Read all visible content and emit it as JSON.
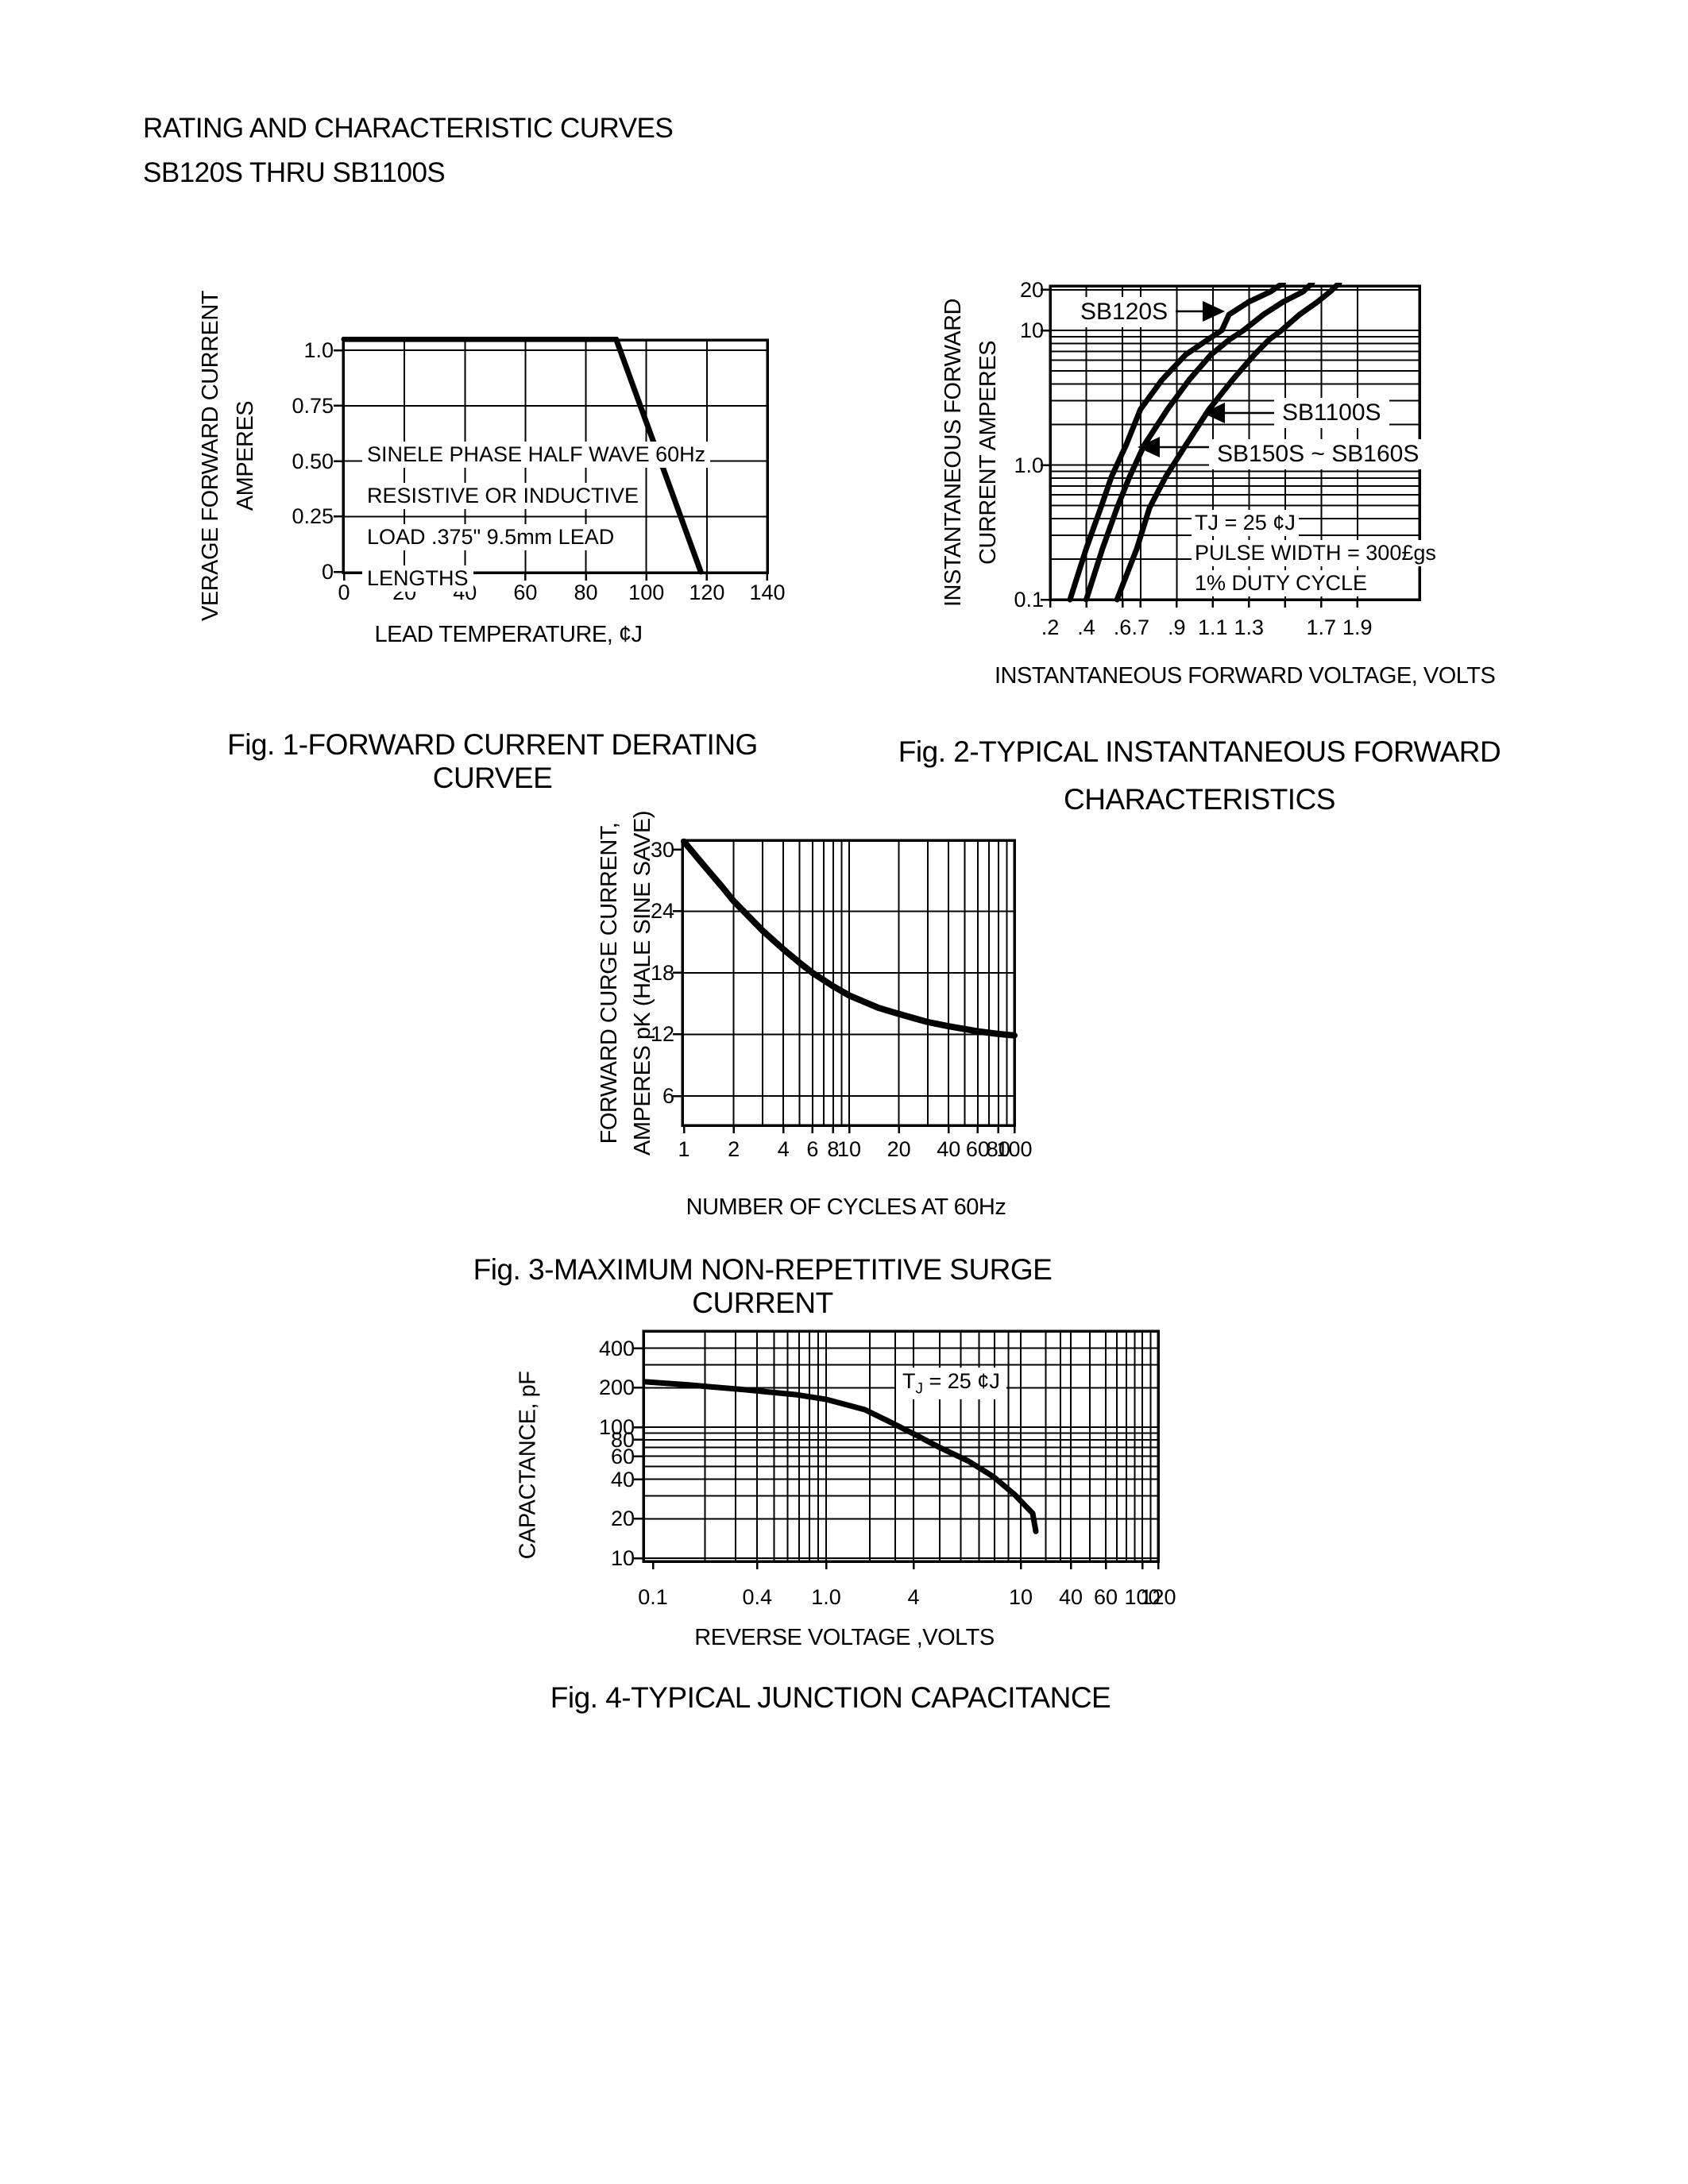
{
  "page": {
    "title_line1": "RATING AND CHARACTERISTIC CURVES",
    "title_line2": "SB120S THRU SB1100S"
  },
  "chart_data": [
    {
      "id": "fig1",
      "type": "line",
      "title": "Fig. 1-FORWARD CURRENT DERATING CURVEE",
      "xlabel": "LEAD TEMPERATURE, ¢J",
      "ylabel": [
        "VERAGE FORWARD CURRENT",
        "AMPERES"
      ],
      "xlim": [
        0,
        140
      ],
      "ylim": [
        0,
        1.05
      ],
      "x_log": false,
      "y_log": false,
      "grid": true,
      "x_ticks": [
        {
          "v": 0,
          "label": "0"
        },
        {
          "v": 20,
          "label": "20"
        },
        {
          "v": 40,
          "label": "40"
        },
        {
          "v": 60,
          "label": "60"
        },
        {
          "v": 80,
          "label": "80"
        },
        {
          "v": 100,
          "label": "100"
        },
        {
          "v": 120,
          "label": "120"
        },
        {
          "v": 140,
          "label": "140"
        }
      ],
      "y_ticks": [
        {
          "v": 1.0,
          "label": "1.0"
        },
        {
          "v": 0.75,
          "label": "0.75"
        },
        {
          "v": 0.5,
          "label": "0.50"
        },
        {
          "v": 0.25,
          "label": "0.25"
        },
        {
          "v": 0,
          "label": "0"
        }
      ],
      "annotation": [
        "SINELE PHASE HALF WAVE 60Hz",
        "RESISTIVE OR INDUCTIVE",
        "LOAD .375\" 9.5mm LEAD",
        "LENGTHS"
      ],
      "series": [
        {
          "name": "derating-curve",
          "points": [
            [
              0,
              1.05
            ],
            [
              90,
              1.05
            ],
            [
              118,
              0
            ]
          ]
        }
      ]
    },
    {
      "id": "fig2",
      "type": "line",
      "title": [
        "Fig. 2-TYPICAL INSTANTANEOUS FORWARD",
        "CHARACTERISTICS"
      ],
      "xlabel": "INSTANTANEOUS FORWARD VOLTAGE, VOLTS",
      "ylabel": [
        "INSTANTANEOUS FORWARD",
        "CURRENT AMPERES"
      ],
      "xlim": [
        0.2,
        2.0
      ],
      "ylim": [
        0.1,
        22
      ],
      "x_log": false,
      "y_log": true,
      "grid": true,
      "x_ticks": [
        {
          "v": 0.2,
          "label": ".2"
        },
        {
          "v": 0.4,
          "label": ".4"
        },
        {
          "v": 0.6,
          "label": ".6"
        },
        {
          "v": 0.7,
          "label": ".7"
        },
        {
          "v": 0.9,
          "label": ".9"
        },
        {
          "v": 1.1,
          "label": "1.1"
        },
        {
          "v": 1.3,
          "label": "1.3"
        },
        {
          "v": 1.5,
          "label": ""
        },
        {
          "v": 1.7,
          "label": "1.7"
        },
        {
          "v": 1.9,
          "label": "1.9"
        }
      ],
      "y_ticks": [
        {
          "v": 20,
          "label": "20"
        },
        {
          "v": 10,
          "label": "10"
        },
        {
          "v": 1,
          "label": "1.0"
        },
        {
          "v": 0.1,
          "label": "0.1"
        }
      ],
      "annotations": [
        "TJ = 25 ¢J",
        "PULSE WIDTH = 300£gs",
        "1% DUTY CYCLE"
      ],
      "series": [
        {
          "name": "SB120S",
          "points": [
            [
              0.31,
              0.1
            ],
            [
              0.4,
              0.24
            ],
            [
              0.48,
              0.48
            ],
            [
              0.54,
              0.82
            ],
            [
              0.62,
              1.4
            ],
            [
              0.7,
              2.6
            ],
            [
              0.82,
              4.3
            ],
            [
              0.95,
              6.6
            ],
            [
              1.07,
              8.5
            ],
            [
              1.15,
              10
            ],
            [
              1.19,
              13.1
            ],
            [
              1.3,
              16.3
            ],
            [
              1.42,
              19.4
            ],
            [
              1.49,
              22.5
            ]
          ]
        },
        {
          "name": "SB150S ~ SB160S",
          "points": [
            [
              0.4,
              0.1
            ],
            [
              0.49,
              0.24
            ],
            [
              0.57,
              0.48
            ],
            [
              0.64,
              0.82
            ],
            [
              0.72,
              1.4
            ],
            [
              0.85,
              2.6
            ],
            [
              0.97,
              4.3
            ],
            [
              1.09,
              6.6
            ],
            [
              1.19,
              8.5
            ],
            [
              1.27,
              10
            ],
            [
              1.38,
              13.1
            ],
            [
              1.49,
              16.3
            ],
            [
              1.6,
              19.4
            ],
            [
              1.65,
              22.5
            ]
          ]
        },
        {
          "name": "SB1100S",
          "points": [
            [
              0.57,
              0.1
            ],
            [
              0.68,
              0.24
            ],
            [
              0.75,
              0.48
            ],
            [
              0.84,
              0.82
            ],
            [
              0.95,
              1.4
            ],
            [
              1.08,
              2.6
            ],
            [
              1.21,
              4.3
            ],
            [
              1.33,
              6.6
            ],
            [
              1.41,
              8.5
            ],
            [
              1.48,
              10
            ],
            [
              1.58,
              13.1
            ],
            [
              1.68,
              16.3
            ],
            [
              1.75,
              19.4
            ],
            [
              1.8,
              22.5
            ]
          ]
        }
      ]
    },
    {
      "id": "fig3",
      "type": "line",
      "title": "Fig. 3-MAXIMUM NON-REPETITIVE SURGE CURRENT",
      "xlabel": "NUMBER OF CYCLES AT 60Hz",
      "ylabel": [
        "FORWARD CURGE CURRENT,",
        "AMPERES pK (HALE SINE SAVE)"
      ],
      "xlim": [
        1,
        100
      ],
      "ylim": [
        3,
        31
      ],
      "x_log": true,
      "y_log": false,
      "grid": true,
      "x_ticks": [
        {
          "v": 1,
          "label": "1"
        },
        {
          "v": 2,
          "label": "2"
        },
        {
          "v": 4,
          "label": "4"
        },
        {
          "v": 6,
          "label": "6"
        },
        {
          "v": 8,
          "label": "8"
        },
        {
          "v": 10,
          "label": "10"
        },
        {
          "v": 20,
          "label": "20"
        },
        {
          "v": 40,
          "label": "40"
        },
        {
          "v": 60,
          "label": "60"
        },
        {
          "v": 80,
          "label": "80"
        },
        {
          "v": 100,
          "label": "100"
        }
      ],
      "y_ticks": [
        {
          "v": 30,
          "label": "30"
        },
        {
          "v": 24,
          "label": "24"
        },
        {
          "v": 18,
          "label": "18"
        },
        {
          "v": 12,
          "label": "12"
        },
        {
          "v": 6,
          "label": "6"
        }
      ],
      "series": [
        {
          "name": "surge-current",
          "points": [
            [
              1,
              30.8
            ],
            [
              1.3,
              28.6
            ],
            [
              1.7,
              26.4
            ],
            [
              2,
              25
            ],
            [
              2.5,
              23.4
            ],
            [
              3,
              22.1
            ],
            [
              4,
              20.3
            ],
            [
              5,
              19
            ],
            [
              6,
              18
            ],
            [
              8,
              16.7
            ],
            [
              10,
              15.8
            ],
            [
              15,
              14.6
            ],
            [
              20,
              14
            ],
            [
              30,
              13.2
            ],
            [
              40,
              12.8
            ],
            [
              60,
              12.3
            ],
            [
              80,
              12.05
            ],
            [
              100,
              11.9
            ]
          ]
        }
      ]
    },
    {
      "id": "fig4",
      "type": "line",
      "title": "Fig. 4-TYPICAL JUNCTION CAPACITANCE",
      "xlabel": "REVERSE VOLTAGE ,VOLTS",
      "ylabel": [
        "CAPACTANCE, pF"
      ],
      "xlim": [
        0.09,
        120
      ],
      "ylim": [
        10,
        540
      ],
      "x_log": true,
      "y_log": true,
      "grid": true,
      "x_ticks": [
        {
          "v": 0.1,
          "label": "0.1"
        },
        {
          "v": 0.4,
          "label": "0.4"
        },
        {
          "v": 1,
          "label": "1.0"
        },
        {
          "v": 4,
          "label": "4"
        },
        {
          "v": 10,
          "label": "10"
        },
        {
          "v": 40,
          "label": "40"
        },
        {
          "v": 60,
          "label": "60"
        },
        {
          "v": 100,
          "label": "100"
        },
        {
          "v": 120,
          "label": "120"
        }
      ],
      "y_ticks": [
        {
          "v": 400,
          "label": "400"
        },
        {
          "v": 200,
          "label": "200"
        },
        {
          "v": 100,
          "label": "100"
        },
        {
          "v": 80,
          "label": "80"
        },
        {
          "v": 60,
          "label": "60"
        },
        {
          "v": 40,
          "label": "40"
        },
        {
          "v": 20,
          "label": "20"
        },
        {
          "v": 10,
          "label": "10"
        }
      ],
      "annotation": {
        "pre": "T",
        "sub": "J",
        "post": " = 25 ¢J"
      },
      "series": [
        {
          "name": "junction-capacitance",
          "points": [
            [
              0.09,
              222
            ],
            [
              0.16,
              210
            ],
            [
              0.34,
              193
            ],
            [
              0.67,
              177
            ],
            [
              1.0,
              163
            ],
            [
              1.85,
              136
            ],
            [
              2.6,
              113
            ],
            [
              4.05,
              88
            ],
            [
              5.0,
              70
            ],
            [
              6.4,
              55
            ],
            [
              7.9,
              42
            ],
            [
              9.5,
              30.5
            ],
            [
              13.9,
              22
            ],
            [
              15.2,
              16
            ]
          ]
        }
      ]
    }
  ],
  "colors": {
    "ink": "#000000",
    "paper": "#ffffff"
  }
}
